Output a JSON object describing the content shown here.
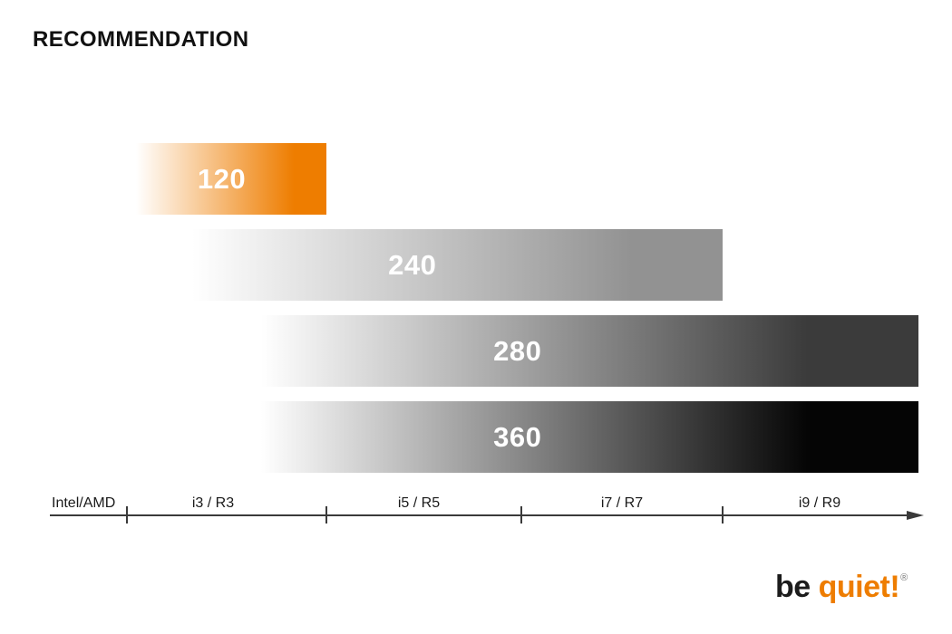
{
  "title": "RECOMMENDATION",
  "chart_data": {
    "type": "bar",
    "orientation": "horizontal",
    "title": "RECOMMENDATION",
    "x_axis": {
      "origin_label": "Intel/AMD",
      "segment_labels": [
        "i3 / R3",
        "i5 / R5",
        "i7 / R7",
        "i9 / R9"
      ],
      "has_arrow": true,
      "grid": false
    },
    "gradient_start_color": "#FFFFFF",
    "bars": [
      {
        "label": "120",
        "value": 120,
        "color": "#EE7D00",
        "start_segment": "i3 / R3",
        "end_segment": "i3 / R3"
      },
      {
        "label": "240",
        "value": 240,
        "color": "#929292",
        "start_segment": "i3 / R3",
        "end_segment": "i7 / R7"
      },
      {
        "label": "280",
        "value": 280,
        "color": "#3B3B3B",
        "start_segment": "i3 / R3",
        "end_segment": "i9 / R9"
      },
      {
        "label": "360",
        "value": 360,
        "color": "#050505",
        "start_segment": "i3 / R3",
        "end_segment": "i9 / R9"
      }
    ]
  },
  "logo": {
    "be": "be ",
    "quiet": "quiet!",
    "registered": "®"
  },
  "colors": {
    "accent_orange": "#EE7D00",
    "bar_gray": "#929292",
    "bar_dark_gray": "#3B3B3B",
    "bar_black": "#050505",
    "axis": "#3A3A3A",
    "text": "#1A1A1A"
  }
}
